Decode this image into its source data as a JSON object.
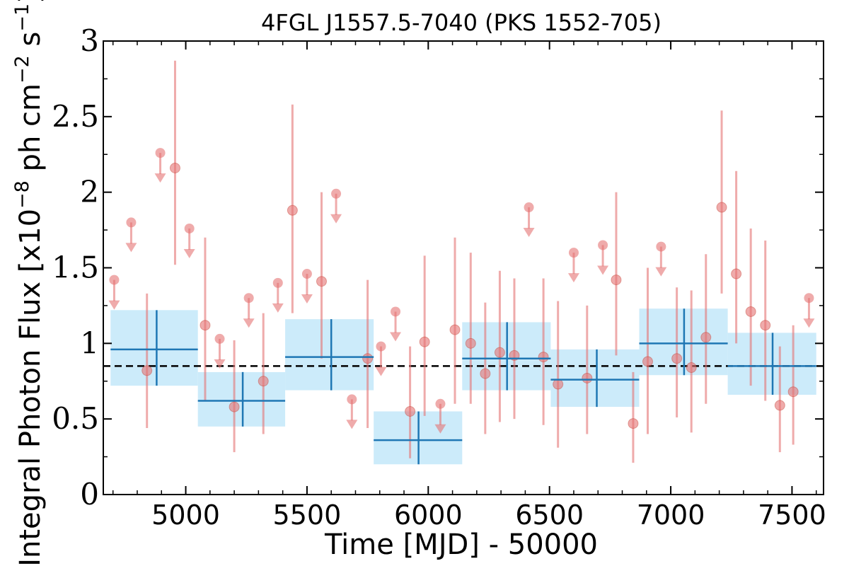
{
  "chart_data": {
    "type": "scatter",
    "title": "4FGL J1557.5-7040 (PKS 1552-705)",
    "xlabel": "Time [MJD] - 50000",
    "ylabel": "Integral Photon Flux [x10",
    "ylabel_exp1": "−8",
    "ylabel_mid": " ph cm",
    "ylabel_exp2": "−2",
    "ylabel_mid2": " s",
    "ylabel_exp3": "−1",
    "ylabel_end": "]",
    "xlim": [
      4660,
      7630
    ],
    "ylim": [
      0,
      3
    ],
    "x_ticks": [
      5000,
      5500,
      6000,
      6500,
      7000,
      7500
    ],
    "y_ticks": [
      0,
      0.5,
      1,
      1.5,
      2,
      2.5,
      3
    ],
    "y_tick_labels": [
      "0",
      "0.5",
      "1",
      "1.5",
      "2",
      "2.5",
      "3"
    ],
    "grid": false,
    "mean_flux": 0.85,
    "colors": {
      "points": "#e57373",
      "bins_line": "#1f77b4",
      "bins_fill": "#ccebfa",
      "mean_line": "#000000"
    },
    "monthly_points": [
      {
        "x": 4840,
        "y": 0.82,
        "lo": 0.44,
        "hi": 1.33
      },
      {
        "x": 4956,
        "y": 2.16,
        "lo": 1.52,
        "hi": 2.87
      },
      {
        "x": 5080,
        "y": 1.12,
        "lo": 0.62,
        "hi": 1.7
      },
      {
        "x": 5200,
        "y": 0.58,
        "lo": 0.28,
        "hi": 1.02
      },
      {
        "x": 5320,
        "y": 0.75,
        "lo": 0.4,
        "hi": 1.2
      },
      {
        "x": 5440,
        "y": 1.88,
        "lo": 1.2,
        "hi": 2.58
      },
      {
        "x": 5560,
        "y": 1.41,
        "lo": 0.9,
        "hi": 2.0
      },
      {
        "x": 5750,
        "y": 0.9,
        "lo": 0.44,
        "hi": 1.42
      },
      {
        "x": 5925,
        "y": 0.55,
        "lo": 0.24,
        "hi": 0.98
      },
      {
        "x": 5985,
        "y": 1.01,
        "lo": 0.52,
        "hi": 1.58
      },
      {
        "x": 6110,
        "y": 1.09,
        "lo": 0.6,
        "hi": 1.7
      },
      {
        "x": 6175,
        "y": 1.0,
        "lo": 0.6,
        "hi": 1.6
      },
      {
        "x": 6235,
        "y": 0.8,
        "lo": 0.4,
        "hi": 1.27
      },
      {
        "x": 6295,
        "y": 0.94,
        "lo": 0.48,
        "hi": 1.48
      },
      {
        "x": 6355,
        "y": 0.92,
        "lo": 0.5,
        "hi": 1.43
      },
      {
        "x": 6475,
        "y": 0.91,
        "lo": 0.46,
        "hi": 1.43
      },
      {
        "x": 6535,
        "y": 0.73,
        "lo": 0.31,
        "hi": 1.28
      },
      {
        "x": 6655,
        "y": 0.77,
        "lo": 0.4,
        "hi": 1.25
      },
      {
        "x": 6775,
        "y": 1.42,
        "lo": 0.92,
        "hi": 2.0
      },
      {
        "x": 6845,
        "y": 0.47,
        "lo": 0.21,
        "hi": 0.81
      },
      {
        "x": 6905,
        "y": 0.88,
        "lo": 0.4,
        "hi": 1.5
      },
      {
        "x": 7025,
        "y": 0.9,
        "lo": 0.51,
        "hi": 1.37
      },
      {
        "x": 7085,
        "y": 0.84,
        "lo": 0.41,
        "hi": 1.35
      },
      {
        "x": 7145,
        "y": 1.04,
        "lo": 0.6,
        "hi": 1.59
      },
      {
        "x": 7210,
        "y": 1.9,
        "lo": 1.33,
        "hi": 2.54
      },
      {
        "x": 7270,
        "y": 1.46,
        "lo": 1.0,
        "hi": 2.14
      },
      {
        "x": 7330,
        "y": 1.21,
        "lo": 0.72,
        "hi": 1.76
      },
      {
        "x": 7390,
        "y": 1.12,
        "lo": 0.62,
        "hi": 1.68
      },
      {
        "x": 7450,
        "y": 0.59,
        "lo": 0.28,
        "hi": 0.98
      },
      {
        "x": 7505,
        "y": 0.68,
        "lo": 0.33,
        "hi": 1.12
      }
    ],
    "upper_limits": [
      {
        "x": 4705,
        "y": 1.42
      },
      {
        "x": 4775,
        "y": 1.8
      },
      {
        "x": 4895,
        "y": 2.26
      },
      {
        "x": 5015,
        "y": 1.76
      },
      {
        "x": 5140,
        "y": 1.03
      },
      {
        "x": 5260,
        "y": 1.3
      },
      {
        "x": 5380,
        "y": 1.4
      },
      {
        "x": 5500,
        "y": 1.46
      },
      {
        "x": 5620,
        "y": 1.99
      },
      {
        "x": 5685,
        "y": 0.63
      },
      {
        "x": 5805,
        "y": 0.98
      },
      {
        "x": 5865,
        "y": 1.21
      },
      {
        "x": 6050,
        "y": 0.6
      },
      {
        "x": 6415,
        "y": 1.9
      },
      {
        "x": 6600,
        "y": 1.6
      },
      {
        "x": 6720,
        "y": 1.65
      },
      {
        "x": 6960,
        "y": 1.64
      },
      {
        "x": 7570,
        "y": 1.3
      }
    ],
    "binned": [
      {
        "x0": 4690,
        "x1": 5050,
        "xc": 4880,
        "y": 0.96,
        "lo": 0.72,
        "hi": 1.22
      },
      {
        "x0": 5050,
        "x1": 5410,
        "xc": 5235,
        "y": 0.62,
        "lo": 0.45,
        "hi": 0.81
      },
      {
        "x0": 5410,
        "x1": 5775,
        "xc": 5600,
        "y": 0.91,
        "lo": 0.69,
        "hi": 1.16
      },
      {
        "x0": 5775,
        "x1": 6140,
        "xc": 5960,
        "y": 0.36,
        "lo": 0.2,
        "hi": 0.55
      },
      {
        "x0": 6140,
        "x1": 6505,
        "xc": 6325,
        "y": 0.9,
        "lo": 0.69,
        "hi": 1.14
      },
      {
        "x0": 6505,
        "x1": 6870,
        "xc": 6695,
        "y": 0.76,
        "lo": 0.58,
        "hi": 0.96
      },
      {
        "x0": 6870,
        "x1": 7235,
        "xc": 7055,
        "y": 1.0,
        "lo": 0.79,
        "hi": 1.23
      },
      {
        "x0": 7235,
        "x1": 7600,
        "xc": 7420,
        "y": 0.85,
        "lo": 0.66,
        "hi": 1.07
      }
    ]
  }
}
